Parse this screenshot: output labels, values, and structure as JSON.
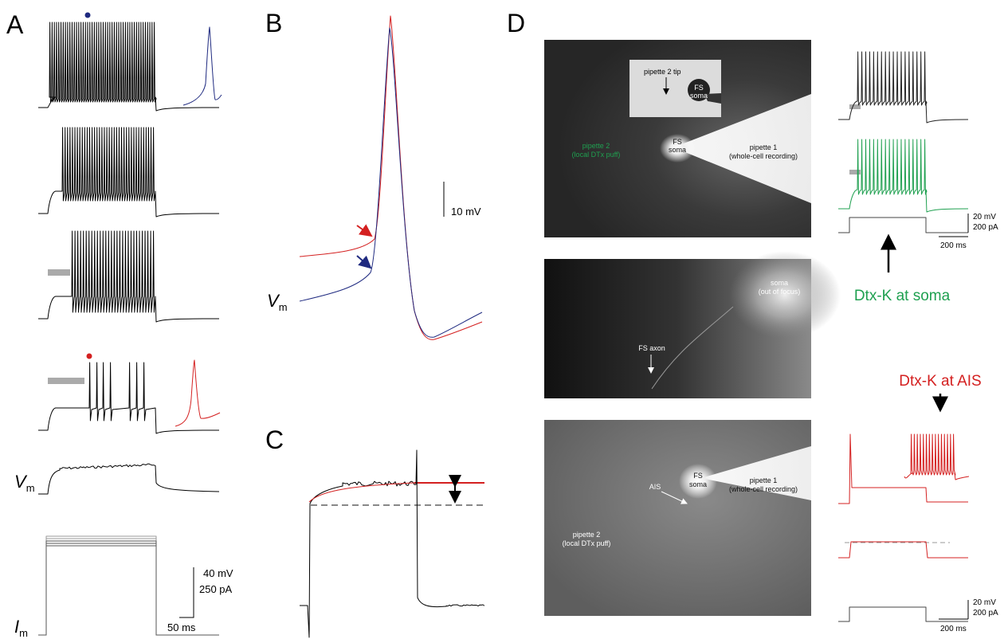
{
  "panels": {
    "A": {
      "label": "A",
      "vm": {
        "symbol": "V",
        "sub": "m"
      },
      "im": {
        "symbol": "I",
        "sub": "m"
      },
      "scale": {
        "voltage": "40 mV",
        "current": "250 pA",
        "time": "50 ms"
      }
    },
    "B": {
      "label": "B",
      "scale": "10 mV",
      "vm": {
        "symbol": "V",
        "sub": "m"
      }
    },
    "C": {
      "label": "C"
    },
    "D": {
      "label": "D",
      "image1": {
        "inset": {
          "tip": "pipette 2 tip",
          "soma": [
            "FS",
            "soma"
          ]
        },
        "soma": [
          "FS",
          "soma"
        ],
        "pipette2": [
          "pipette 2",
          "(local DTx puff)"
        ],
        "pipette1": [
          "pipette 1",
          "(whole-cell recording)"
        ]
      },
      "image2": {
        "soma": [
          "soma",
          "(out of focus)"
        ],
        "axon": "FS axon"
      },
      "image3": {
        "ais": "AIS",
        "soma": [
          "FS",
          "soma"
        ],
        "pipette2": [
          "pipette 2",
          "(local DTx puff)"
        ],
        "pipette1": [
          "pipette 1",
          "(whole-cell recording)"
        ]
      },
      "soma_scale": {
        "voltage": "20 mV",
        "current": "200 pA",
        "time": "200 ms"
      },
      "soma_label": "Dtx-K at soma",
      "ais_label": "Dtx-K at AIS",
      "ais_scale": {
        "voltage": "20 mV",
        "current": "200 pA",
        "time": "200 ms"
      }
    }
  }
}
